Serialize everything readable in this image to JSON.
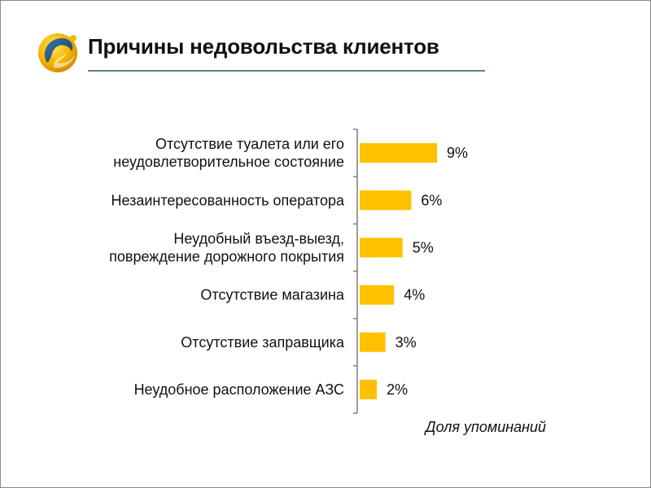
{
  "header": {
    "title": "Причины недовольства клиентов",
    "logo_icon": "swirl-logo-icon",
    "accent_color": "#5d7f7a"
  },
  "chart_data": {
    "type": "bar",
    "orientation": "horizontal",
    "categories": [
      [
        "Отсутствие туалета или его",
        "неудовлетворительное состояние"
      ],
      [
        "Незаинтересованность оператора"
      ],
      [
        "Неудобный въезд-выезд,",
        "повреждение дорожного покрытия"
      ],
      [
        "Отсутствие магазина"
      ],
      [
        "Отсутствие заправщика"
      ],
      [
        "Неудобное расположение АЗС"
      ]
    ],
    "values": [
      9,
      6,
      5,
      4,
      3,
      2
    ],
    "value_labels": [
      "9%",
      "6%",
      "5%",
      "4%",
      "3%",
      "2%"
    ],
    "xlabel": "Доля упоминаний",
    "ylabel": "",
    "xlim": [
      0,
      25
    ],
    "bar_color": "#ffc000",
    "grid": false
  }
}
